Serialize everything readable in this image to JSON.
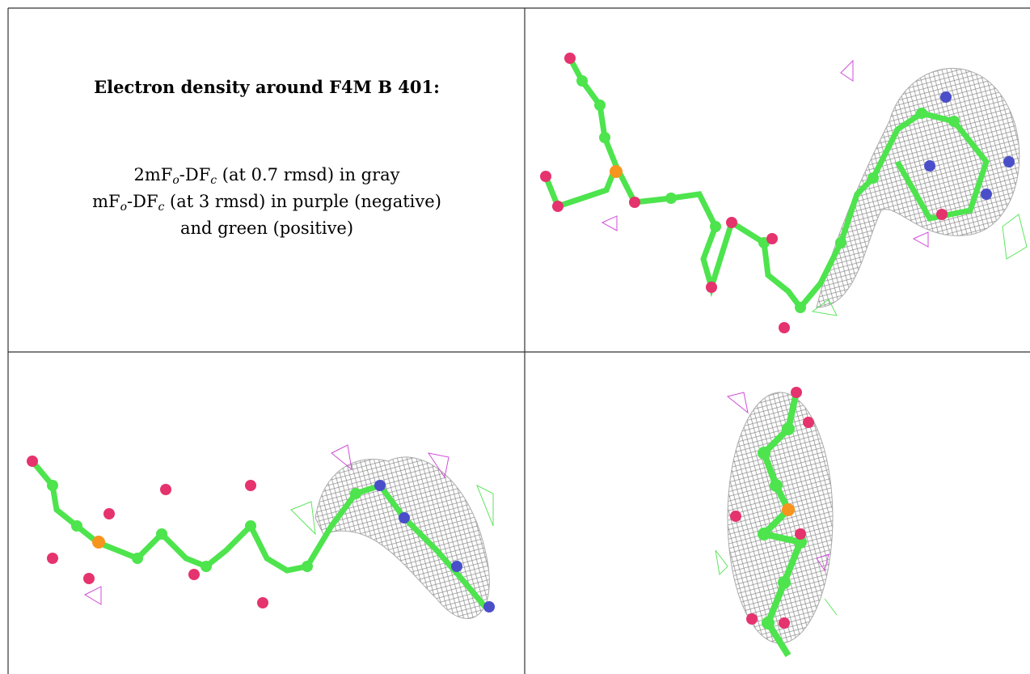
{
  "title": "Electron density around F4M B 401:",
  "legend": {
    "line1": [
      "2mF",
      "o",
      "-DF",
      "c",
      " (at 0.7 rmsd) in gray"
    ],
    "line2": [
      "mF",
      "o",
      "-DF",
      "c",
      " (at 3 rmsd) in purple (negative)"
    ],
    "line3": "and green (positive)"
  }
}
